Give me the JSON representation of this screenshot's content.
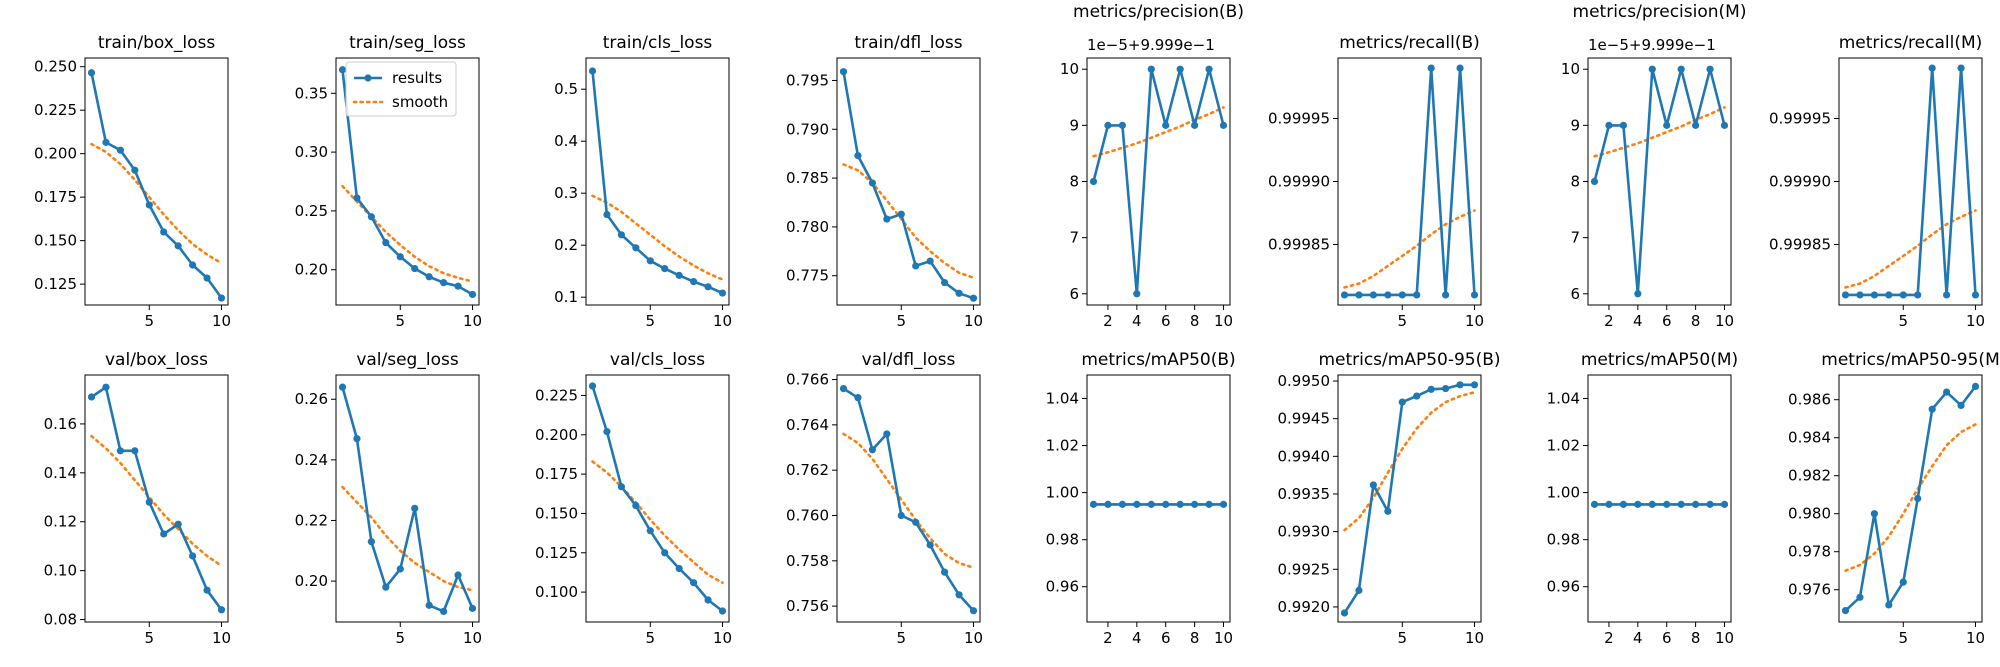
{
  "colors": {
    "results": "#1f77b4",
    "smooth": "#ff7f0e",
    "axis": "#000000",
    "background": "#ffffff"
  },
  "legend": {
    "location": "top-right",
    "panel": "train/seg_loss",
    "entries": [
      "results",
      "smooth"
    ]
  },
  "chart_data": [
    {
      "type": "line",
      "title": "train/box_loss",
      "x": [
        1,
        2,
        3,
        4,
        5,
        6,
        7,
        8,
        9,
        10
      ],
      "series": [
        {
          "name": "results",
          "values": [
            0.2465,
            0.2065,
            0.202,
            0.1905,
            0.1705,
            0.155,
            0.147,
            0.136,
            0.1285,
            0.117
          ]
        },
        {
          "name": "smooth",
          "values": [
            0.2055,
            0.201,
            0.194,
            0.185,
            0.175,
            0.165,
            0.156,
            0.148,
            0.142,
            0.137
          ]
        }
      ],
      "ylim": [
        0.113,
        0.255
      ],
      "yticks": [
        0.125,
        0.15,
        0.175,
        0.2,
        0.225,
        0.25
      ],
      "yticklabels": [
        "0.125",
        "0.150",
        "0.175",
        "0.200",
        "0.225",
        "0.250"
      ],
      "xticks": [
        5,
        10
      ]
    },
    {
      "type": "line",
      "title": "train/seg_loss",
      "x": [
        1,
        2,
        3,
        4,
        5,
        6,
        7,
        8,
        9,
        10
      ],
      "series": [
        {
          "name": "results",
          "values": [
            0.37,
            0.261,
            0.245,
            0.223,
            0.211,
            0.201,
            0.194,
            0.189,
            0.186,
            0.179
          ]
        },
        {
          "name": "smooth",
          "values": [
            0.271,
            0.258,
            0.245,
            0.232,
            0.221,
            0.211,
            0.203,
            0.197,
            0.193,
            0.19
          ]
        }
      ],
      "ylim": [
        0.17,
        0.38
      ],
      "yticks": [
        0.2,
        0.25,
        0.3,
        0.35
      ],
      "yticklabels": [
        "0.20",
        "0.25",
        "0.30",
        "0.35"
      ],
      "xticks": [
        5,
        10
      ]
    },
    {
      "type": "line",
      "title": "train/cls_loss",
      "x": [
        1,
        2,
        3,
        4,
        5,
        6,
        7,
        8,
        9,
        10
      ],
      "series": [
        {
          "name": "results",
          "values": [
            0.535,
            0.259,
            0.22,
            0.195,
            0.17,
            0.155,
            0.142,
            0.13,
            0.12,
            0.108
          ]
        },
        {
          "name": "smooth",
          "values": [
            0.295,
            0.282,
            0.264,
            0.242,
            0.22,
            0.198,
            0.178,
            0.161,
            0.146,
            0.134
          ]
        }
      ],
      "ylim": [
        0.085,
        0.56
      ],
      "yticks": [
        0.1,
        0.2,
        0.3,
        0.4,
        0.5
      ],
      "yticklabels": [
        "0.1",
        "0.2",
        "0.3",
        "0.4",
        "0.5"
      ],
      "xticks": [
        5,
        10
      ]
    },
    {
      "type": "line",
      "title": "train/dfl_loss",
      "x": [
        1,
        2,
        3,
        4,
        5,
        6,
        7,
        8,
        9,
        10
      ],
      "series": [
        {
          "name": "results",
          "values": [
            0.7959,
            0.7873,
            0.7845,
            0.7808,
            0.7813,
            0.776,
            0.7765,
            0.7743,
            0.7732,
            0.7727
          ]
        },
        {
          "name": "smooth",
          "values": [
            0.7864,
            0.7858,
            0.7845,
            0.7827,
            0.7808,
            0.7789,
            0.7775,
            0.7763,
            0.7753,
            0.7748
          ]
        }
      ],
      "ylim": [
        0.772,
        0.7973
      ],
      "yticks": [
        0.775,
        0.78,
        0.785,
        0.79,
        0.795
      ],
      "yticklabels": [
        "0.775",
        "0.780",
        "0.785",
        "0.790",
        "0.795"
      ],
      "xticks": [
        5,
        10
      ]
    },
    {
      "type": "line",
      "title": "metrics/precision(B)",
      "axis_offset_label": "1e−5+9.999e−1",
      "x": [
        1,
        2,
        3,
        4,
        5,
        6,
        7,
        8,
        9,
        10
      ],
      "series": [
        {
          "name": "results",
          "values": [
            8,
            9,
            9,
            6,
            10,
            9,
            10,
            9,
            10,
            9
          ]
        },
        {
          "name": "smooth",
          "values": [
            8.45,
            8.52,
            8.6,
            8.68,
            8.78,
            8.88,
            8.98,
            9.1,
            9.2,
            9.32
          ]
        }
      ],
      "ylim": [
        5.8,
        10.2
      ],
      "yticks": [
        6,
        7,
        8,
        9,
        10
      ],
      "yticklabels": [
        "6",
        "7",
        "8",
        "9",
        "10"
      ],
      "xticks": [
        2,
        4,
        6,
        8,
        10
      ]
    },
    {
      "type": "line",
      "title": "metrics/recall(B)",
      "x": [
        1,
        2,
        3,
        4,
        5,
        6,
        7,
        8,
        9,
        10
      ],
      "series": [
        {
          "name": "results",
          "values": [
            0.99981,
            0.99981,
            0.99981,
            0.99981,
            0.99981,
            0.99981,
            0.99999,
            0.99981,
            0.99999,
            0.99981
          ]
        },
        {
          "name": "smooth",
          "values": [
            0.999816,
            0.999819,
            0.999825,
            0.999833,
            0.999841,
            0.999849,
            0.999858,
            0.999866,
            0.999872,
            0.999877
          ]
        }
      ],
      "ylim": [
        0.999802,
        0.999998
      ],
      "yticks": [
        0.99985,
        0.9999,
        0.99995
      ],
      "yticklabels": [
        "0.99985",
        "0.99990",
        "0.99995"
      ],
      "xticks": [
        5,
        10
      ]
    },
    {
      "type": "line",
      "title": "metrics/precision(M)",
      "axis_offset_label": "1e−5+9.999e−1",
      "x": [
        1,
        2,
        3,
        4,
        5,
        6,
        7,
        8,
        9,
        10
      ],
      "series": [
        {
          "name": "results",
          "values": [
            8,
            9,
            9,
            6,
            10,
            9,
            10,
            9,
            10,
            9
          ]
        },
        {
          "name": "smooth",
          "values": [
            8.45,
            8.52,
            8.6,
            8.68,
            8.78,
            8.88,
            8.98,
            9.1,
            9.2,
            9.32
          ]
        }
      ],
      "ylim": [
        5.8,
        10.2
      ],
      "yticks": [
        6,
        7,
        8,
        9,
        10
      ],
      "yticklabels": [
        "6",
        "7",
        "8",
        "9",
        "10"
      ],
      "xticks": [
        2,
        4,
        6,
        8,
        10
      ]
    },
    {
      "type": "line",
      "title": "metrics/recall(M)",
      "x": [
        1,
        2,
        3,
        4,
        5,
        6,
        7,
        8,
        9,
        10
      ],
      "series": [
        {
          "name": "results",
          "values": [
            0.99981,
            0.99981,
            0.99981,
            0.99981,
            0.99981,
            0.99981,
            0.99999,
            0.99981,
            0.99999,
            0.99981
          ]
        },
        {
          "name": "smooth",
          "values": [
            0.999816,
            0.999819,
            0.999825,
            0.999833,
            0.999841,
            0.999849,
            0.999858,
            0.999866,
            0.999872,
            0.999877
          ]
        }
      ],
      "ylim": [
        0.999802,
        0.999998
      ],
      "yticks": [
        0.99985,
        0.9999,
        0.99995
      ],
      "yticklabels": [
        "0.99985",
        "0.99990",
        "0.99995"
      ],
      "xticks": [
        5,
        10
      ]
    },
    {
      "type": "line",
      "title": "val/box_loss",
      "x": [
        1,
        2,
        3,
        4,
        5,
        6,
        7,
        8,
        9,
        10
      ],
      "series": [
        {
          "name": "results",
          "values": [
            0.171,
            0.175,
            0.149,
            0.149,
            0.128,
            0.115,
            0.119,
            0.106,
            0.092,
            0.084
          ]
        },
        {
          "name": "smooth",
          "values": [
            0.155,
            0.15,
            0.144,
            0.137,
            0.13,
            0.123,
            0.117,
            0.111,
            0.106,
            0.102
          ]
        }
      ],
      "ylim": [
        0.079,
        0.18
      ],
      "yticks": [
        0.08,
        0.1,
        0.12,
        0.14,
        0.16
      ],
      "yticklabels": [
        "0.08",
        "0.10",
        "0.12",
        "0.14",
        "0.16"
      ],
      "xticks": [
        5,
        10
      ]
    },
    {
      "type": "line",
      "title": "val/seg_loss",
      "x": [
        1,
        2,
        3,
        4,
        5,
        6,
        7,
        8,
        9,
        10
      ],
      "series": [
        {
          "name": "results",
          "values": [
            0.264,
            0.247,
            0.213,
            0.198,
            0.204,
            0.224,
            0.192,
            0.19,
            0.202,
            0.191
          ]
        },
        {
          "name": "smooth",
          "values": [
            0.231,
            0.226,
            0.221,
            0.215,
            0.21,
            0.206,
            0.203,
            0.2,
            0.198,
            0.197
          ]
        }
      ],
      "ylim": [
        0.1865,
        0.268
      ],
      "yticks": [
        0.2,
        0.22,
        0.24,
        0.26
      ],
      "yticklabels": [
        "0.20",
        "0.22",
        "0.24",
        "0.26"
      ],
      "xticks": [
        5,
        10
      ]
    },
    {
      "type": "line",
      "title": "val/cls_loss",
      "x": [
        1,
        2,
        3,
        4,
        5,
        6,
        7,
        8,
        9,
        10
      ],
      "series": [
        {
          "name": "results",
          "values": [
            0.231,
            0.202,
            0.167,
            0.155,
            0.139,
            0.125,
            0.115,
            0.106,
            0.095,
            0.088
          ]
        },
        {
          "name": "smooth",
          "values": [
            0.183,
            0.176,
            0.167,
            0.157,
            0.146,
            0.136,
            0.127,
            0.119,
            0.111,
            0.106
          ]
        }
      ],
      "ylim": [
        0.081,
        0.238
      ],
      "yticks": [
        0.1,
        0.125,
        0.15,
        0.175,
        0.2,
        0.225
      ],
      "yticklabels": [
        "0.100",
        "0.125",
        "0.150",
        "0.175",
        "0.200",
        "0.225"
      ],
      "xticks": [
        5,
        10
      ]
    },
    {
      "type": "line",
      "title": "val/dfl_loss",
      "x": [
        1,
        2,
        3,
        4,
        5,
        6,
        7,
        8,
        9,
        10
      ],
      "series": [
        {
          "name": "results",
          "values": [
            0.7656,
            0.7652,
            0.7629,
            0.7636,
            0.76,
            0.7597,
            0.7587,
            0.7575,
            0.7565,
            0.7558
          ]
        },
        {
          "name": "smooth",
          "values": [
            0.7636,
            0.7632,
            0.7625,
            0.7616,
            0.7607,
            0.7598,
            0.759,
            0.7583,
            0.7579,
            0.7577
          ]
        }
      ],
      "ylim": [
        0.7553,
        0.7662
      ],
      "yticks": [
        0.756,
        0.758,
        0.76,
        0.762,
        0.764,
        0.766
      ],
      "yticklabels": [
        "0.756",
        "0.758",
        "0.760",
        "0.762",
        "0.764",
        "0.766"
      ],
      "xticks": [
        5,
        10
      ]
    },
    {
      "type": "line",
      "title": "metrics/mAP50(B)",
      "x": [
        1,
        2,
        3,
        4,
        5,
        6,
        7,
        8,
        9,
        10
      ],
      "series": [
        {
          "name": "results",
          "values": [
            0.995,
            0.995,
            0.995,
            0.995,
            0.995,
            0.995,
            0.995,
            0.995,
            0.995,
            0.995
          ]
        },
        {
          "name": "smooth",
          "values": [
            0.995,
            0.995,
            0.995,
            0.995,
            0.995,
            0.995,
            0.995,
            0.995,
            0.995,
            0.995
          ]
        }
      ],
      "ylim": [
        0.945,
        1.05
      ],
      "yticks": [
        0.96,
        0.98,
        1.0,
        1.02,
        1.04
      ],
      "yticklabels": [
        "0.96",
        "0.98",
        "1.00",
        "1.02",
        "1.04"
      ],
      "xticks": [
        2,
        4,
        6,
        8,
        10
      ]
    },
    {
      "type": "line",
      "title": "metrics/mAP50-95(B)",
      "x": [
        1,
        2,
        3,
        4,
        5,
        6,
        7,
        8,
        9,
        10
      ],
      "series": [
        {
          "name": "results",
          "values": [
            0.99192,
            0.99222,
            0.99362,
            0.99327,
            0.99472,
            0.9948,
            0.99489,
            0.9949,
            0.99495,
            0.99495
          ]
        },
        {
          "name": "smooth",
          "values": [
            0.99302,
            0.99318,
            0.99345,
            0.99378,
            0.9941,
            0.99437,
            0.99458,
            0.99472,
            0.9948,
            0.99485
          ]
        }
      ],
      "ylim": [
        0.9918,
        0.99508
      ],
      "yticks": [
        0.992,
        0.9925,
        0.993,
        0.9935,
        0.994,
        0.9945,
        0.995
      ],
      "yticklabels": [
        "0.9920",
        "0.9925",
        "0.9930",
        "0.9935",
        "0.9940",
        "0.9945",
        "0.9950"
      ],
      "xticks": [
        5,
        10
      ]
    },
    {
      "type": "line",
      "title": "metrics/mAP50(M)",
      "x": [
        1,
        2,
        3,
        4,
        5,
        6,
        7,
        8,
        9,
        10
      ],
      "series": [
        {
          "name": "results",
          "values": [
            0.995,
            0.995,
            0.995,
            0.995,
            0.995,
            0.995,
            0.995,
            0.995,
            0.995,
            0.995
          ]
        },
        {
          "name": "smooth",
          "values": [
            0.995,
            0.995,
            0.995,
            0.995,
            0.995,
            0.995,
            0.995,
            0.995,
            0.995,
            0.995
          ]
        }
      ],
      "ylim": [
        0.945,
        1.05
      ],
      "yticks": [
        0.96,
        0.98,
        1.0,
        1.02,
        1.04
      ],
      "yticklabels": [
        "0.96",
        "0.98",
        "1.00",
        "1.02",
        "1.04"
      ],
      "xticks": [
        2,
        4,
        6,
        8,
        10
      ]
    },
    {
      "type": "line",
      "title": "metrics/mAP50-95(M",
      "x": [
        1,
        2,
        3,
        4,
        5,
        6,
        7,
        8,
        9,
        10
      ],
      "series": [
        {
          "name": "results",
          "values": [
            0.9749,
            0.9756,
            0.98,
            0.9752,
            0.9764,
            0.9808,
            0.9855,
            0.9864,
            0.9857,
            0.9867
          ]
        },
        {
          "name": "smooth",
          "values": [
            0.977,
            0.9773,
            0.9779,
            0.9788,
            0.98,
            0.9813,
            0.9825,
            0.9836,
            0.9843,
            0.9847
          ]
        }
      ],
      "ylim": [
        0.9743,
        0.9873
      ],
      "yticks": [
        0.976,
        0.978,
        0.98,
        0.982,
        0.984,
        0.986
      ],
      "yticklabels": [
        "0.976",
        "0.978",
        "0.980",
        "0.982",
        "0.984",
        "0.986"
      ],
      "xticks": [
        5,
        10
      ]
    }
  ]
}
